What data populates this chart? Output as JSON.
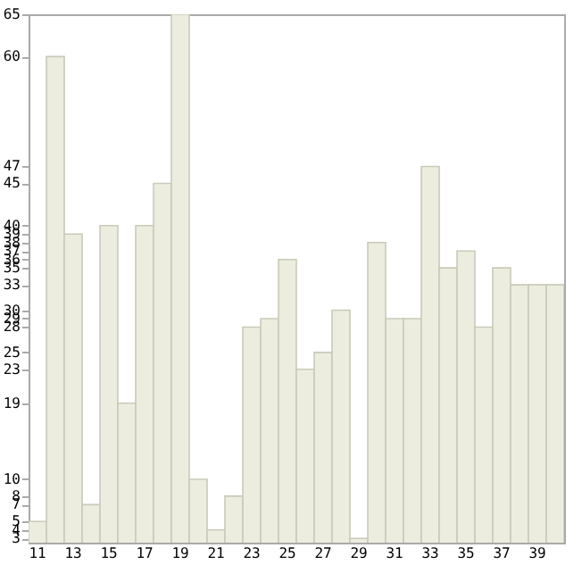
{
  "chart_data": {
    "type": "bar",
    "categories": [
      "11",
      null,
      "13",
      null,
      "15",
      null,
      "17",
      null,
      "19",
      null,
      "21",
      null,
      "23",
      null,
      "25",
      null,
      "27",
      null,
      "29",
      null,
      "31",
      null,
      "33",
      null,
      "35",
      null,
      "37",
      null,
      "39",
      null
    ],
    "values": [
      5,
      60,
      39,
      7,
      40,
      19,
      40,
      45,
      65,
      10,
      4,
      8,
      28,
      29,
      36,
      23,
      25,
      30,
      3,
      38,
      29,
      29,
      47,
      35,
      37,
      28,
      35,
      33,
      33,
      33
    ],
    "color": "#ecedde",
    "ylim": [
      2.5,
      65
    ],
    "yticks": [
      3,
      4,
      5,
      7,
      8,
      10,
      19,
      23,
      25,
      28,
      29,
      30,
      33,
      35,
      36,
      37,
      38,
      39,
      40,
      45,
      47,
      60,
      65
    ]
  }
}
